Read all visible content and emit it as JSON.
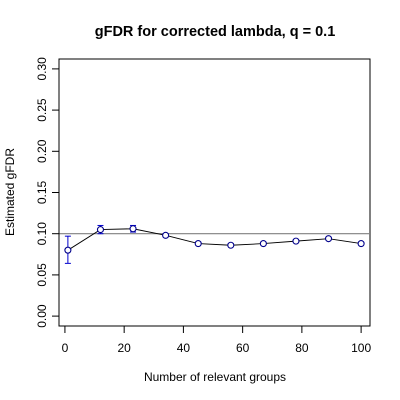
{
  "chart_data": {
    "type": "scatter",
    "title": "gFDR for corrected lambda, q = 0.1",
    "xlabel": "Number of relevant groups",
    "ylabel": "Estimated gFDR",
    "xlim": [
      -2,
      103
    ],
    "ylim": [
      -0.012,
      0.312
    ],
    "x_ticks": [
      0,
      20,
      40,
      60,
      80,
      100
    ],
    "x_tick_labels": [
      "0",
      "20",
      "40",
      "60",
      "80",
      "100"
    ],
    "y_ticks": [
      0.0,
      0.05,
      0.1,
      0.15,
      0.2,
      0.25,
      0.3
    ],
    "y_tick_labels": [
      "0.00",
      "0.05",
      "0.10",
      "0.15",
      "0.20",
      "0.25",
      "0.30"
    ],
    "reference_line": {
      "y": 0.1,
      "color": "#808080"
    },
    "series": [
      {
        "x": [
          1,
          12,
          23,
          34,
          45,
          56,
          67,
          78,
          89,
          100
        ],
        "y": [
          0.08,
          0.105,
          0.106,
          0.098,
          0.088,
          0.086,
          0.088,
          0.091,
          0.094,
          0.088
        ],
        "err_low": [
          0.064,
          0.1,
          0.102,
          0.096,
          0.087,
          0.085,
          0.087,
          0.09,
          0.093,
          0.087
        ],
        "err_high": [
          0.097,
          0.11,
          0.11,
          0.1,
          0.09,
          0.088,
          0.09,
          0.093,
          0.096,
          0.09
        ],
        "line_color": "#000000",
        "marker_color": "#00008b",
        "errorbar_color": "#0000cd"
      }
    ],
    "grid": false,
    "legend": "none"
  }
}
